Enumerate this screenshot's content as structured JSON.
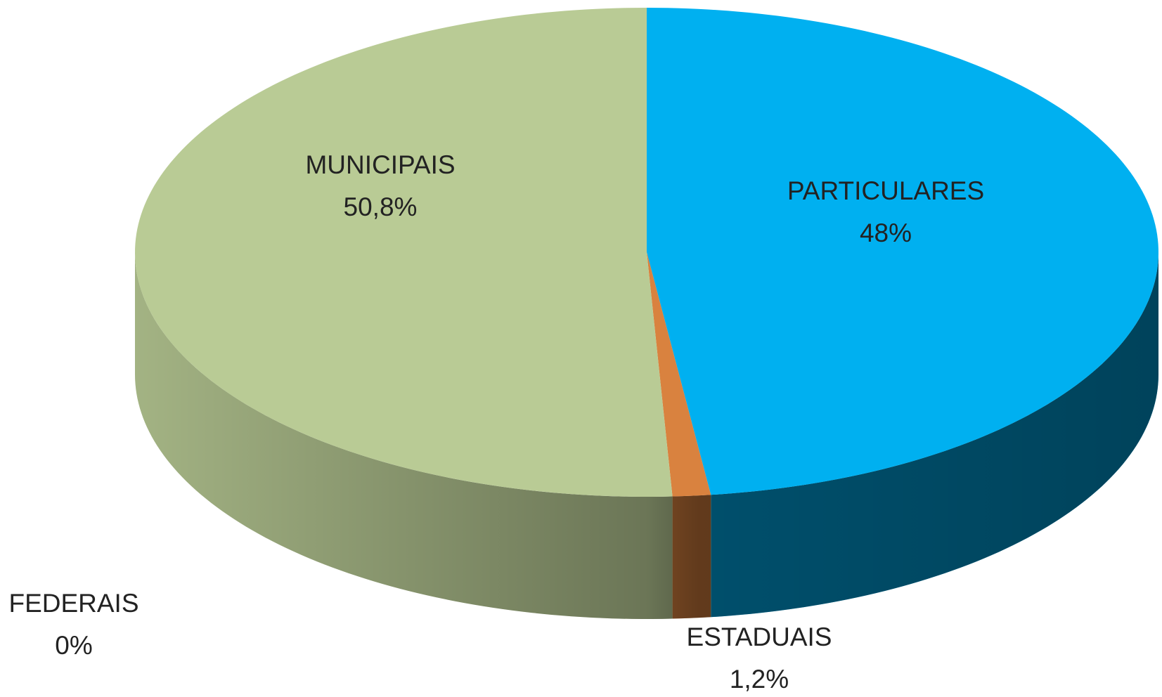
{
  "chart_data": {
    "type": "pie",
    "categories": [
      "PARTICULARES",
      "ESTADUAIS",
      "FEDERAIS",
      "MUNICIPAIS"
    ],
    "values": [
      48,
      1.2,
      0,
      50.8
    ],
    "value_labels": [
      "48%",
      "1,2%",
      "0%",
      "50,8%"
    ],
    "colors": [
      "#00b0f0",
      "#d9823f",
      "#8064a2",
      "#b9cb95"
    ]
  }
}
